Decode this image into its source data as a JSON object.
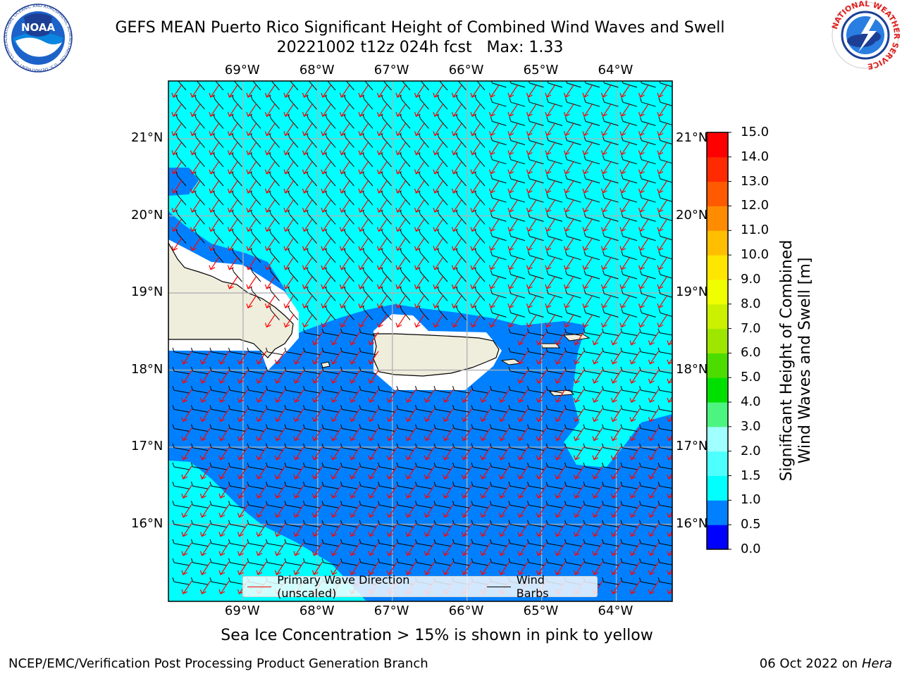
{
  "title": {
    "line1": "GEFS MEAN Puerto Rico Significant Height of Combined Wind Waves and Swell",
    "line2": "20221002 t12z 024h fcst   Max: 1.33"
  },
  "logos": {
    "left_text": "NOAA",
    "left_ring_text": "NATIONAL OCEANIC AND ATMOSPHERIC ADMINISTRATION · U.S. DEPARTMENT OF COMMERCE",
    "right_ring_text": "NATIONAL WEATHER SERVICE"
  },
  "map": {
    "lon_labels": [
      "69°W",
      "68°W",
      "67°W",
      "66°W",
      "65°W",
      "64°W"
    ],
    "lon_values": [
      -69,
      -68,
      -67,
      -66,
      -65,
      -64
    ],
    "lat_labels": [
      "16°N",
      "17°N",
      "18°N",
      "19°N",
      "20°N",
      "21°N"
    ],
    "lat_values": [
      16,
      17,
      18,
      19,
      20,
      21
    ],
    "lon_range": [
      -70.0,
      -63.25
    ],
    "lat_range": [
      15.0,
      21.75
    ],
    "colors": {
      "land": "#efeddc",
      "below_0_5": "#0000ff",
      "0_5_to_1_0": "#0080ff",
      "1_0_to_1_5": "#00ffff",
      "grid": "#b0b0b0",
      "wave_arrow": "#ff0000",
      "wind_barb": "#000000"
    }
  },
  "legend": {
    "wave_label": "Primary Wave Direction (unscaled)",
    "barb_label": "Wind Barbs"
  },
  "colorbar": {
    "label_line1": "Significant Height of Combined",
    "label_line2": "Wind Waves and Swell [m]",
    "ticks": [
      "0.0",
      "0.5",
      "1.0",
      "1.5",
      "2.0",
      "3.0",
      "4.0",
      "5.0",
      "6.0",
      "7.0",
      "8.0",
      "9.0",
      "10.0",
      "11.0",
      "12.0",
      "13.0",
      "14.0",
      "15.0"
    ],
    "colors": [
      "#0000ff",
      "#0080ff",
      "#00ffff",
      "#4dffff",
      "#a0ffff",
      "#4cf580",
      "#00e000",
      "#4cdc00",
      "#9ee600",
      "#cbf000",
      "#f0ff00",
      "#ffe600",
      "#ffbe00",
      "#ff8c00",
      "#ff5a00",
      "#ff2a00",
      "#ff0000"
    ]
  },
  "subnote": "Sea Ice Concentration > 15% is shown in pink to yellow",
  "footer": {
    "left": "NCEP/EMC/Verification Post Processing Product Generation Branch",
    "right_prefix": "06 Oct 2022 on ",
    "right_host": "Hera"
  }
}
